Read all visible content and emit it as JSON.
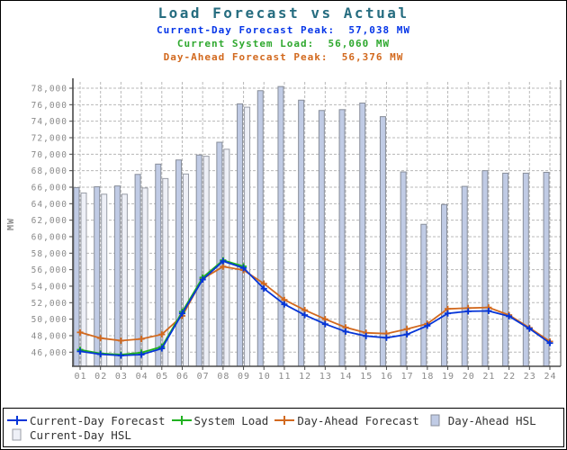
{
  "header": {
    "title": "Load Forecast vs Actual",
    "title_color": "#266D80",
    "subtitles": [
      {
        "text": "Current-Day Forecast Peak:  57,038 MW",
        "color": "#0535E8"
      },
      {
        "text": "Current System Load:  56,060 MW",
        "color": "#2EA82E"
      },
      {
        "text": "Day-Ahead Forecast Peak:  56,376 MW",
        "color": "#D2691E"
      }
    ]
  },
  "chart_data": {
    "type": "bar",
    "title": "Load Forecast vs Actual",
    "xlabel": "",
    "ylabel": "MW",
    "x": [
      "01",
      "02",
      "03",
      "04",
      "05",
      "06",
      "07",
      "08",
      "09",
      "10",
      "11",
      "12",
      "13",
      "14",
      "15",
      "16",
      "17",
      "18",
      "19",
      "20",
      "21",
      "22",
      "23",
      "24"
    ],
    "yticks": [
      46000,
      48000,
      50000,
      52000,
      54000,
      56000,
      58000,
      60000,
      62000,
      64000,
      66000,
      68000,
      70000,
      72000,
      74000,
      76000,
      78000
    ],
    "ylim": [
      44300,
      79000
    ],
    "grid": true,
    "legend_position": "bottom",
    "series": [
      {
        "name": "Day-Ahead HSL",
        "type": "bar",
        "fill": "#C0CBE5",
        "stroke": "#878D99",
        "values": [
          65950,
          66050,
          66150,
          67550,
          68800,
          69300,
          69900,
          71450,
          76100,
          77700,
          78200,
          76550,
          75300,
          75400,
          76200,
          74550,
          67850,
          61500,
          63900,
          66100,
          68000,
          67700,
          67700,
          67800
        ]
      },
      {
        "name": "Current-Day HSL",
        "type": "bar",
        "fill": "#EEF0F7",
        "stroke": "#989CA6",
        "values": [
          65300,
          65150,
          65150,
          65900,
          67050,
          67600,
          69750,
          70600,
          75700,
          null,
          null,
          null,
          null,
          null,
          null,
          null,
          null,
          null,
          null,
          null,
          null,
          null,
          null,
          null
        ]
      },
      {
        "name": "Current-Day Forecast",
        "type": "line",
        "color": "#0535D8",
        "values": [
          46100,
          45750,
          45600,
          45700,
          46450,
          50700,
          54800,
          57038,
          56200,
          53700,
          51800,
          50500,
          49400,
          48500,
          47950,
          47750,
          48150,
          49200,
          50700,
          50950,
          51000,
          50350,
          48850,
          47100
        ]
      },
      {
        "name": "System Load",
        "type": "line",
        "color": "#21B121",
        "values": [
          46300,
          45850,
          45700,
          45950,
          46650,
          50900,
          55050,
          57150,
          56400,
          null,
          null,
          null,
          null,
          null,
          null,
          null,
          null,
          null,
          null,
          null,
          null,
          null,
          null,
          null
        ]
      },
      {
        "name": "Day-Ahead Forecast",
        "type": "line",
        "color": "#D2691E",
        "values": [
          48400,
          47700,
          47400,
          47600,
          48150,
          50400,
          54900,
          56376,
          55950,
          54300,
          52350,
          51100,
          50000,
          49000,
          48350,
          48250,
          48800,
          49450,
          51250,
          51350,
          51420,
          50500,
          48950,
          47300
        ]
      }
    ]
  },
  "axis_style": {
    "tick_label_color": "#8A8A8A",
    "grid_color": "#B8B8B8",
    "axis_color": "#4A4A4A"
  },
  "legend": {
    "rows": [
      [
        {
          "label": "Current-Day Forecast",
          "swatch": "line",
          "color": "#0535D8"
        },
        {
          "label": "System Load",
          "swatch": "line",
          "color": "#21B121"
        },
        {
          "label": "Day-Ahead Forecast",
          "swatch": "line",
          "color": "#D2691E"
        },
        {
          "label": "Day-Ahead HSL",
          "swatch": "bar",
          "fill": "#C0CBE5",
          "stroke": "#878D99"
        }
      ],
      [
        {
          "label": "Current-Day HSL",
          "swatch": "bar",
          "fill": "#EEF0F7",
          "stroke": "#989CA6"
        }
      ]
    ]
  }
}
